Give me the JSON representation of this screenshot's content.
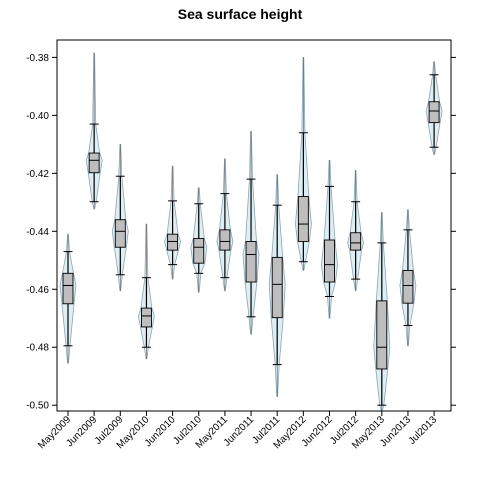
{
  "chart_data": {
    "type": "box-violin",
    "title": "Sea surface height",
    "xlabel": "",
    "ylabel": "",
    "ylim": [
      -0.502,
      -0.374
    ],
    "yticks": [
      -0.38,
      -0.4,
      -0.42,
      -0.44,
      -0.46,
      -0.48,
      -0.5
    ],
    "ytick_labels": [
      "-0.38",
      "-0.40",
      "-0.42",
      "-0.44",
      "-0.46",
      "-0.48",
      "-0.50"
    ],
    "categories": [
      "May2009",
      "Jun2009",
      "Jul2009",
      "May2010",
      "Jun2010",
      "Jul2010",
      "May2011",
      "Jun2011",
      "Jul2011",
      "May2012",
      "Jun2012",
      "Jul2012",
      "May2013",
      "Jun2013",
      "Jul2013"
    ],
    "boxes": [
      {
        "min": -0.4795,
        "q1": -0.465,
        "median": -0.4587,
        "q3": -0.4545,
        "max": -0.447,
        "vmin": -0.4855,
        "vmax": -0.441
      },
      {
        "min": -0.4298,
        "q1": -0.4198,
        "median": -0.4155,
        "q3": -0.413,
        "max": -0.403,
        "vmin": -0.4323,
        "vmax": -0.3785
      },
      {
        "min": -0.455,
        "q1": -0.4455,
        "median": -0.44,
        "q3": -0.436,
        "max": -0.421,
        "vmin": -0.4605,
        "vmax": -0.41
      },
      {
        "min": -0.48,
        "q1": -0.473,
        "median": -0.4692,
        "q3": -0.4665,
        "max": -0.456,
        "vmin": -0.484,
        "vmax": -0.4375
      },
      {
        "min": -0.4515,
        "q1": -0.4465,
        "median": -0.4435,
        "q3": -0.441,
        "max": -0.4295,
        "vmin": -0.4565,
        "vmax": -0.4175
      },
      {
        "min": -0.4545,
        "q1": -0.451,
        "median": -0.4455,
        "q3": -0.4425,
        "max": -0.4305,
        "vmin": -0.461,
        "vmax": -0.425
      },
      {
        "min": -0.456,
        "q1": -0.4465,
        "median": -0.4435,
        "q3": -0.4395,
        "max": -0.427,
        "vmin": -0.4605,
        "vmax": -0.415
      },
      {
        "min": -0.4695,
        "q1": -0.4575,
        "median": -0.448,
        "q3": -0.4435,
        "max": -0.422,
        "vmin": -0.4755,
        "vmax": -0.4055
      },
      {
        "min": -0.486,
        "q1": -0.4698,
        "median": -0.4583,
        "q3": -0.449,
        "max": -0.431,
        "vmin": -0.497,
        "vmax": -0.4205
      },
      {
        "min": -0.4505,
        "q1": -0.4435,
        "median": -0.4375,
        "q3": -0.428,
        "max": -0.406,
        "vmin": -0.4535,
        "vmax": -0.38
      },
      {
        "min": -0.4625,
        "q1": -0.4575,
        "median": -0.4515,
        "q3": -0.443,
        "max": -0.4245,
        "vmin": -0.47,
        "vmax": -0.4155
      },
      {
        "min": -0.4565,
        "q1": -0.4465,
        "median": -0.444,
        "q3": -0.4405,
        "max": -0.4298,
        "vmin": -0.4605,
        "vmax": -0.419
      },
      {
        "min": -0.5,
        "q1": -0.4875,
        "median": -0.48,
        "q3": -0.464,
        "max": -0.444,
        "vmin": -0.502,
        "vmax": -0.4335
      },
      {
        "min": -0.4725,
        "q1": -0.4648,
        "median": -0.4587,
        "q3": -0.4535,
        "max": -0.4395,
        "vmin": -0.4795,
        "vmax": -0.4325
      },
      {
        "min": -0.411,
        "q1": -0.4025,
        "median": -0.3985,
        "q3": -0.3953,
        "max": -0.386,
        "vmin": -0.4135,
        "vmax": -0.3815
      }
    ],
    "colors": {
      "violin_fill": "#dfeef4",
      "violin_stroke": "#8aa6b3",
      "box_fill": "#bebebe",
      "box_stroke": "#000000",
      "whisker": "#000000",
      "axis": "#000000"
    }
  }
}
